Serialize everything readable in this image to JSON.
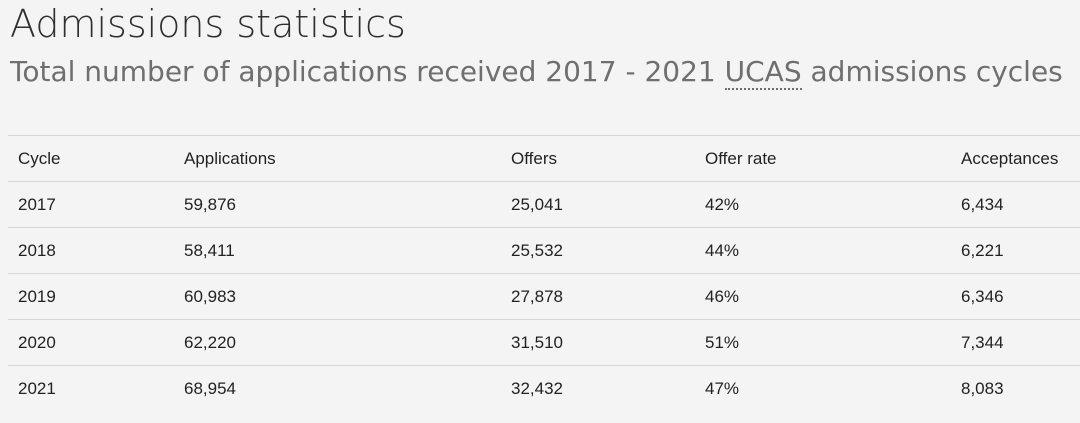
{
  "page": {
    "title": "Admissions statistics",
    "subtitle_before": "Total number of applications received 2017 - 2021 ",
    "subtitle_abbr": "UCAS",
    "subtitle_after": " admissions cycles"
  },
  "table": {
    "headers": [
      "Cycle",
      "Applications",
      "Offers",
      "Offer rate",
      "Acceptances"
    ],
    "rows": [
      [
        "2017",
        "59,876",
        "25,041",
        "42%",
        "6,434"
      ],
      [
        "2018",
        "58,411",
        "25,532",
        "44%",
        "6,221"
      ],
      [
        "2019",
        "60,983",
        "27,878",
        "46%",
        "6,346"
      ],
      [
        "2020",
        "62,220",
        "31,510",
        "51%",
        "7,344"
      ],
      [
        "2021",
        "68,954",
        "32,432",
        "47%",
        "8,083"
      ]
    ]
  }
}
